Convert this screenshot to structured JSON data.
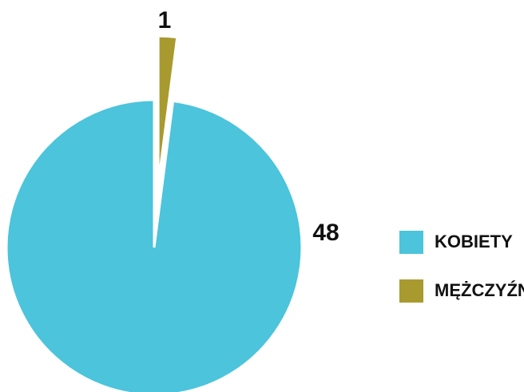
{
  "chart_data": {
    "type": "pie",
    "categories": [
      "KOBIETY",
      "MĘŻCZYŹNI"
    ],
    "values": [
      48,
      1
    ],
    "colors": [
      "#4bc4dc",
      "#a99a2f"
    ],
    "legend": "right"
  }
}
